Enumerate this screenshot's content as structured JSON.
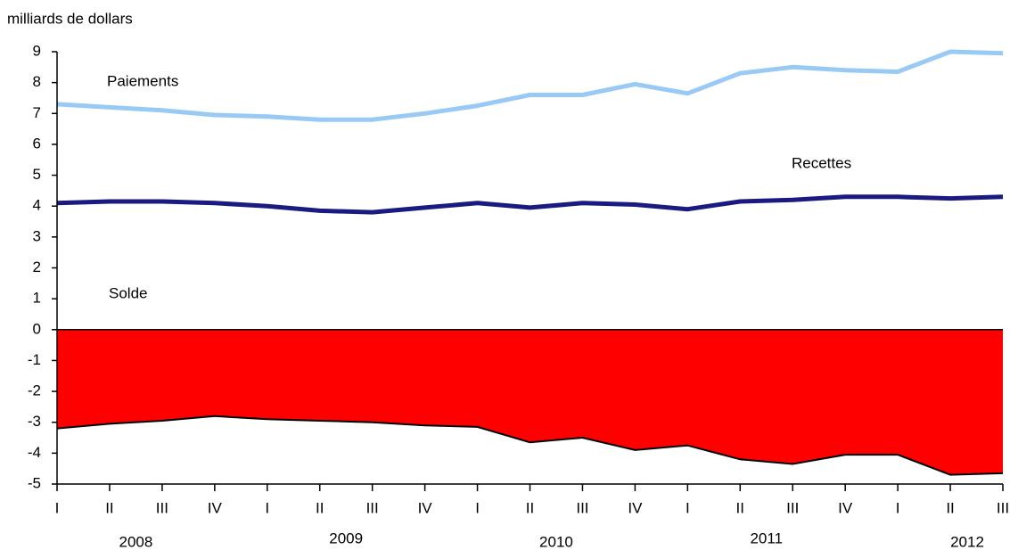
{
  "chart_data": {
    "type": "line",
    "y_label": "milliards de dollars",
    "categories": [
      "I",
      "II",
      "III",
      "IV",
      "I",
      "II",
      "III",
      "IV",
      "I",
      "II",
      "III",
      "IV",
      "I",
      "II",
      "III",
      "IV",
      "I",
      "II",
      "III"
    ],
    "years": [
      "2008",
      "2009",
      "2010",
      "2011",
      "2012"
    ],
    "series": [
      {
        "name": "Paiements",
        "color": "#99c9f5",
        "values": [
          7.3,
          7.2,
          7.1,
          6.95,
          6.9,
          6.8,
          6.8,
          7.0,
          7.25,
          7.6,
          7.6,
          7.95,
          7.65,
          8.3,
          8.5,
          8.4,
          8.35,
          9.0,
          8.95
        ]
      },
      {
        "name": "Recettes",
        "color": "#1a1a80",
        "values": [
          4.1,
          4.15,
          4.15,
          4.1,
          4.0,
          3.85,
          3.8,
          3.95,
          4.1,
          3.95,
          4.1,
          4.05,
          3.9,
          4.15,
          4.2,
          4.3,
          4.3,
          4.25,
          4.3
        ]
      },
      {
        "name": "Solde",
        "color": "#ff0000",
        "line_color": "#000000",
        "fill": "area",
        "values": [
          -3.2,
          -3.05,
          -2.95,
          -2.8,
          -2.9,
          -2.95,
          -3.0,
          -3.1,
          -3.15,
          -3.65,
          -3.5,
          -3.9,
          -3.75,
          -4.2,
          -4.35,
          -4.05,
          -4.05,
          -4.7,
          -4.65
        ]
      }
    ],
    "ylim": [
      -5,
      9
    ],
    "yticks": [
      -5,
      -4,
      -3,
      -2,
      -1,
      0,
      1,
      2,
      3,
      4,
      5,
      6,
      7,
      8,
      9
    ]
  }
}
